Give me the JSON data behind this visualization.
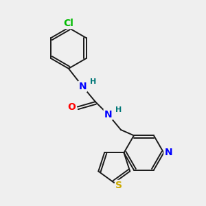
{
  "bg_color": "#efefef",
  "bond_color": "#1a1a1a",
  "atom_colors": {
    "N": "#0000ff",
    "O": "#ff0000",
    "S": "#ccaa00",
    "Cl": "#00bb00",
    "H_label": "#007777",
    "C": "#1a1a1a"
  },
  "font_size_atoms": 10,
  "font_size_H": 8,
  "font_size_Cl": 10
}
